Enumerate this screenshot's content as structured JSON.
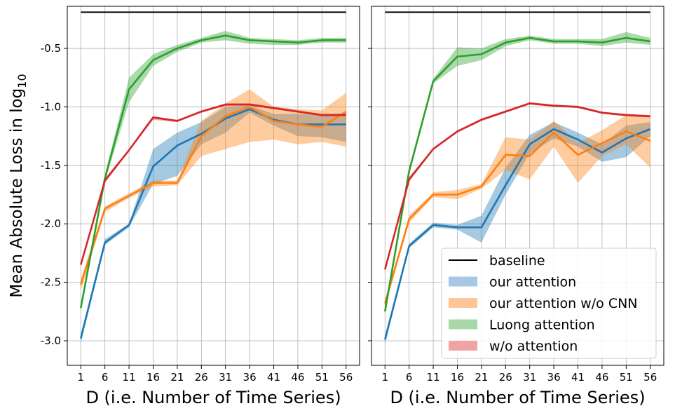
{
  "chart_data": [
    {
      "type": "line",
      "panel": "left",
      "ylabel": "Mean Absolute Loss in log",
      "ylabel_subscript": "10",
      "xlabel": "D (i.e. Number of Time Series)",
      "x": [
        1,
        6,
        11,
        16,
        21,
        26,
        31,
        36,
        41,
        46,
        51,
        56
      ],
      "xticks": [
        "1",
        "6",
        "11",
        "16",
        "21",
        "26",
        "31",
        "36",
        "41",
        "46",
        "51",
        "56"
      ],
      "yticks": [
        "-3.0",
        "-2.5",
        "-2.0",
        "-1.5",
        "-1.0",
        "-0.5"
      ],
      "xlim": [
        -1.8,
        58.8
      ],
      "ylim": [
        -3.21,
        -0.14
      ],
      "grid": true,
      "series": [
        {
          "name": "baseline",
          "color": "#000000",
          "values": [
            -0.19,
            -0.19,
            -0.19,
            -0.19,
            -0.19,
            -0.19,
            -0.19,
            -0.19,
            -0.19,
            -0.19,
            -0.19,
            -0.19
          ]
        },
        {
          "name": "our attention",
          "color": "#1f77b4",
          "band_color": "#a6c8e4",
          "values": [
            -2.98,
            -2.16,
            -2.01,
            -1.51,
            -1.33,
            -1.23,
            -1.1,
            -1.02,
            -1.11,
            -1.15,
            -1.15,
            -1.15
          ],
          "lower": [
            -3.02,
            -2.18,
            -2.03,
            -1.66,
            -1.59,
            -1.32,
            -1.22,
            -1.05,
            -1.16,
            -1.25,
            -1.26,
            -1.3
          ],
          "upper": [
            -2.94,
            -2.13,
            -2.0,
            -1.36,
            -1.22,
            -1.13,
            -1.0,
            -0.99,
            -1.06,
            -1.06,
            -1.07,
            -1.05
          ]
        },
        {
          "name": "our attention w/o CNN",
          "color": "#ff7f0e",
          "band_color": "#ffc599",
          "values": [
            -2.52,
            -1.87,
            -1.76,
            -1.65,
            -1.65,
            -1.25,
            -1.08,
            -1.0,
            -1.12,
            -1.15,
            -1.17,
            -1.04
          ],
          "lower": [
            -2.57,
            -1.9,
            -1.78,
            -1.68,
            -1.67,
            -1.42,
            -1.36,
            -1.3,
            -1.28,
            -1.32,
            -1.3,
            -1.34
          ],
          "upper": [
            -2.47,
            -1.85,
            -1.74,
            -1.63,
            -1.63,
            -1.12,
            -0.97,
            -0.85,
            -1.0,
            -1.02,
            -1.03,
            -0.88
          ]
        },
        {
          "name": "Luong attention",
          "color": "#2ca02c",
          "band_color": "#a8d8a8",
          "values": [
            -2.72,
            -1.61,
            -0.85,
            -0.6,
            -0.5,
            -0.43,
            -0.39,
            -0.43,
            -0.44,
            -0.45,
            -0.43,
            -0.43
          ],
          "lower": [
            -2.75,
            -1.64,
            -0.96,
            -0.65,
            -0.53,
            -0.45,
            -0.43,
            -0.46,
            -0.47,
            -0.47,
            -0.45,
            -0.45
          ],
          "upper": [
            -2.69,
            -1.58,
            -0.75,
            -0.55,
            -0.47,
            -0.41,
            -0.35,
            -0.41,
            -0.42,
            -0.43,
            -0.41,
            -0.41
          ]
        },
        {
          "name": "w/o attention",
          "color": "#d62728",
          "band_color": "#f0a3a3",
          "values": [
            -2.35,
            -1.63,
            -1.37,
            -1.09,
            -1.12,
            -1.04,
            -0.98,
            -0.98,
            -1.01,
            -1.04,
            -1.07,
            -1.07
          ],
          "lower": [
            -2.37,
            -1.65,
            -1.38,
            -1.11,
            -1.13,
            -1.05,
            -0.99,
            -0.99,
            -1.02,
            -1.05,
            -1.08,
            -1.08
          ],
          "upper": [
            -2.33,
            -1.61,
            -1.36,
            -1.08,
            -1.11,
            -1.03,
            -0.97,
            -0.97,
            -1.0,
            -1.03,
            -1.06,
            -1.06
          ]
        }
      ]
    },
    {
      "type": "line",
      "panel": "right",
      "xlabel": "D (i.e. Number of Time Series)",
      "x": [
        1,
        6,
        11,
        16,
        21,
        26,
        31,
        36,
        41,
        46,
        51,
        56
      ],
      "xticks": [
        "1",
        "6",
        "11",
        "16",
        "21",
        "26",
        "31",
        "36",
        "41",
        "46",
        "51",
        "56"
      ],
      "xlim": [
        -1.8,
        58.8
      ],
      "ylim": [
        -3.21,
        -0.14
      ],
      "grid": true,
      "legend_position": "lower-right",
      "series": [
        {
          "name": "baseline",
          "color": "#000000",
          "values": [
            -0.19,
            -0.19,
            -0.19,
            -0.19,
            -0.19,
            -0.19,
            -0.19,
            -0.19,
            -0.19,
            -0.19,
            -0.19,
            -0.19
          ]
        },
        {
          "name": "our attention",
          "color": "#1f77b4",
          "band_color": "#a6c8e4",
          "values": [
            -2.99,
            -2.19,
            -2.01,
            -2.03,
            -2.03,
            -1.67,
            -1.32,
            -1.19,
            -1.28,
            -1.39,
            -1.27,
            -1.19
          ],
          "lower": [
            -3.03,
            -2.21,
            -2.03,
            -2.05,
            -2.16,
            -1.75,
            -1.4,
            -1.27,
            -1.34,
            -1.47,
            -1.43,
            -1.25
          ],
          "upper": [
            -2.95,
            -2.17,
            -1.99,
            -2.01,
            -1.93,
            -1.52,
            -1.24,
            -1.13,
            -1.22,
            -1.32,
            -1.16,
            -1.13
          ]
        },
        {
          "name": "our attention w/o CNN",
          "color": "#ff7f0e",
          "band_color": "#ffc599",
          "values": [
            -2.68,
            -1.96,
            -1.75,
            -1.75,
            -1.68,
            -1.41,
            -1.42,
            -1.22,
            -1.41,
            -1.31,
            -1.21,
            -1.29
          ],
          "lower": [
            -2.71,
            -1.99,
            -1.77,
            -1.79,
            -1.7,
            -1.54,
            -1.62,
            -1.34,
            -1.65,
            -1.42,
            -1.32,
            -1.52
          ],
          "upper": [
            -2.65,
            -1.93,
            -1.73,
            -1.71,
            -1.66,
            -1.26,
            -1.28,
            -1.12,
            -1.31,
            -1.2,
            -1.07,
            -1.09
          ]
        },
        {
          "name": "Luong attention",
          "color": "#2ca02c",
          "band_color": "#a8d8a8",
          "values": [
            -2.75,
            -1.55,
            -0.78,
            -0.57,
            -0.55,
            -0.45,
            -0.41,
            -0.44,
            -0.44,
            -0.45,
            -0.41,
            -0.44
          ],
          "lower": [
            -2.78,
            -1.58,
            -0.8,
            -0.65,
            -0.6,
            -0.48,
            -0.43,
            -0.46,
            -0.46,
            -0.48,
            -0.45,
            -0.47
          ],
          "upper": [
            -2.72,
            -1.52,
            -0.76,
            -0.49,
            -0.5,
            -0.42,
            -0.39,
            -0.42,
            -0.42,
            -0.42,
            -0.36,
            -0.41
          ]
        },
        {
          "name": "w/o attention",
          "color": "#d62728",
          "band_color": "#f0a3a3",
          "values": [
            -2.39,
            -1.62,
            -1.36,
            -1.21,
            -1.11,
            -1.04,
            -0.97,
            -0.99,
            -1.0,
            -1.05,
            -1.07,
            -1.08
          ],
          "lower": [
            -2.41,
            -1.64,
            -1.37,
            -1.22,
            -1.12,
            -1.05,
            -0.98,
            -1.0,
            -1.01,
            -1.06,
            -1.08,
            -1.09
          ],
          "upper": [
            -2.37,
            -1.6,
            -1.35,
            -1.2,
            -1.1,
            -1.03,
            -0.96,
            -0.98,
            -0.99,
            -1.04,
            -1.06,
            -1.07
          ]
        }
      ]
    }
  ]
}
